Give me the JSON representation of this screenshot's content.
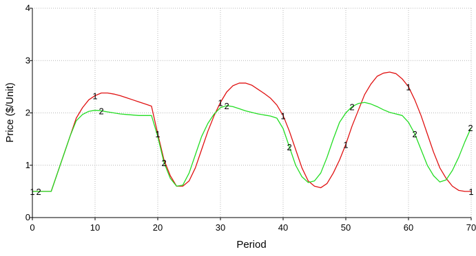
{
  "chart_data": {
    "type": "line",
    "title": "",
    "xlabel": "Period",
    "ylabel": "Price ($/Unit)",
    "xlim": [
      0,
      70
    ],
    "ylim": [
      0,
      4
    ],
    "x_ticks": [
      "0",
      "10",
      "20",
      "30",
      "40",
      "50",
      "60",
      "70"
    ],
    "y_ticks": [
      "0",
      "1",
      "2",
      "3",
      "4"
    ],
    "grid": true,
    "legend": "none",
    "marker_interval": 10,
    "series": [
      {
        "marker": "1",
        "color": "#e01010",
        "x": [
          0,
          1,
          2,
          3,
          4,
          5,
          6,
          7,
          8,
          9,
          10,
          11,
          12,
          13,
          14,
          15,
          16,
          17,
          18,
          19,
          20,
          21,
          22,
          23,
          24,
          25,
          26,
          27,
          28,
          29,
          30,
          31,
          32,
          33,
          34,
          35,
          36,
          37,
          38,
          39,
          40,
          41,
          42,
          43,
          44,
          45,
          46,
          47,
          48,
          49,
          50,
          51,
          52,
          53,
          54,
          55,
          56,
          57,
          58,
          59,
          60,
          61,
          62,
          63,
          64,
          65,
          66,
          67,
          68,
          69,
          70
        ],
        "values": [
          0.5,
          0.5,
          0.5,
          0.5,
          0.85,
          1.2,
          1.55,
          1.9,
          2.1,
          2.25,
          2.33,
          2.38,
          2.38,
          2.36,
          2.33,
          2.29,
          2.25,
          2.21,
          2.17,
          2.13,
          1.6,
          1.1,
          0.8,
          0.6,
          0.6,
          0.7,
          0.95,
          1.3,
          1.65,
          1.95,
          2.2,
          2.4,
          2.52,
          2.57,
          2.57,
          2.53,
          2.45,
          2.37,
          2.28,
          2.15,
          1.95,
          1.65,
          1.3,
          0.95,
          0.7,
          0.6,
          0.57,
          0.65,
          0.85,
          1.1,
          1.4,
          1.75,
          2.05,
          2.35,
          2.55,
          2.7,
          2.76,
          2.78,
          2.75,
          2.65,
          2.5,
          2.25,
          1.95,
          1.6,
          1.25,
          0.95,
          0.75,
          0.6,
          0.52,
          0.5,
          0.5
        ]
      },
      {
        "marker": "2",
        "color": "#22dd22",
        "x": [
          0,
          1,
          2,
          3,
          4,
          5,
          6,
          7,
          8,
          9,
          10,
          11,
          12,
          13,
          14,
          15,
          16,
          17,
          18,
          19,
          20,
          21,
          22,
          23,
          24,
          25,
          26,
          27,
          28,
          29,
          30,
          31,
          32,
          33,
          34,
          35,
          36,
          37,
          38,
          39,
          40,
          41,
          42,
          43,
          44,
          45,
          46,
          47,
          48,
          49,
          50,
          51,
          52,
          53,
          54,
          55,
          56,
          57,
          58,
          59,
          60,
          61,
          62,
          63,
          64,
          65,
          66,
          67,
          68,
          69,
          70
        ],
        "values": [
          0.5,
          0.5,
          0.5,
          0.5,
          0.85,
          1.2,
          1.55,
          1.85,
          1.97,
          2.03,
          2.05,
          2.04,
          2.02,
          2.0,
          1.98,
          1.97,
          1.96,
          1.95,
          1.95,
          1.95,
          1.55,
          1.05,
          0.75,
          0.6,
          0.62,
          0.85,
          1.2,
          1.55,
          1.8,
          1.98,
          2.1,
          2.14,
          2.12,
          2.08,
          2.04,
          2.01,
          1.98,
          1.96,
          1.94,
          1.9,
          1.7,
          1.35,
          1.0,
          0.78,
          0.67,
          0.7,
          0.85,
          1.15,
          1.5,
          1.82,
          2.0,
          2.12,
          2.18,
          2.2,
          2.17,
          2.12,
          2.06,
          2.01,
          1.98,
          1.95,
          1.82,
          1.6,
          1.3,
          1.0,
          0.8,
          0.68,
          0.72,
          0.9,
          1.15,
          1.45,
          1.72
        ]
      }
    ]
  }
}
